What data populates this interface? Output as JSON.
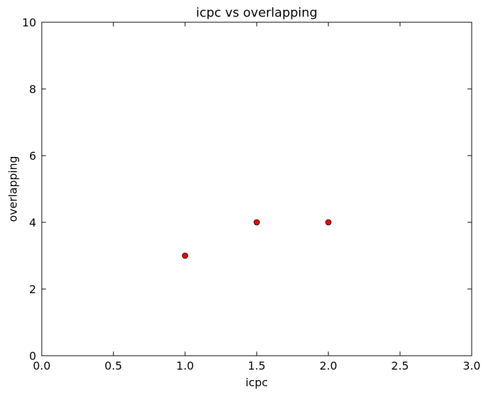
{
  "chart_data": {
    "type": "scatter",
    "title": "icpc vs overlapping",
    "xlabel": "icpc",
    "ylabel": "overlapping",
    "xlim": [
      0,
      3
    ],
    "ylim": [
      0,
      10
    ],
    "x_ticks": [
      "0.0",
      "0.5",
      "1.0",
      "1.5",
      "2.0",
      "2.5",
      "3.0"
    ],
    "y_ticks": [
      "0",
      "2",
      "4",
      "6",
      "8",
      "10"
    ],
    "grid": false,
    "series": [
      {
        "x": [
          1.0,
          1.5,
          2.0
        ],
        "y": [
          3,
          4,
          4
        ],
        "color": "#ff0000",
        "marker": "circle"
      }
    ]
  }
}
